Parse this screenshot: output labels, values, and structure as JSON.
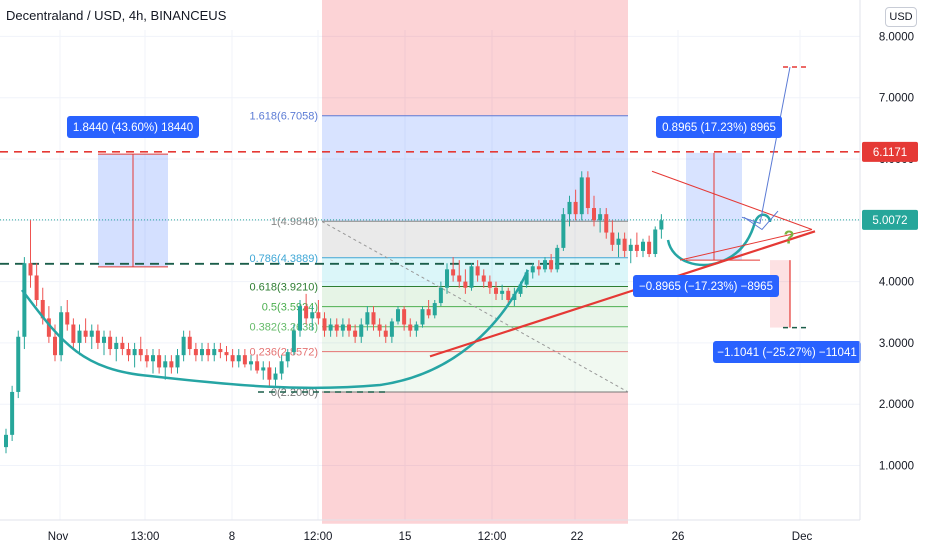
{
  "header": {
    "title": "Decentraland / USD, 4h, BINANCEUS",
    "currency_button": "USD"
  },
  "colors": {
    "up": "#26a69a",
    "down": "#ef5350",
    "red_dash": "#e53935",
    "green_dash": "#1b5e4a",
    "blue_label": "#2962ff",
    "curve": "#26a5a4"
  },
  "chart_data": {
    "type": "candlestick",
    "title": "Decentraland / USD, 4h, BINANCEUS",
    "ylim": [
      0,
      8.5
    ],
    "y_ticks": [
      "8.0000",
      "7.0000",
      "6.0000",
      "5.0000",
      "4.0000",
      "3.0000",
      "2.0000",
      "1.0000"
    ],
    "x_ticks": [
      "Nov",
      "13:00",
      "8",
      "12:00",
      "15",
      "12:00",
      "22",
      "26",
      "Dec"
    ],
    "price_labels": [
      {
        "value": 6.1171,
        "text": "6.1171",
        "color": "#e53935"
      },
      {
        "value": 5.0072,
        "text": "5.0072",
        "color": "#26a69a"
      }
    ],
    "horizontal_lines": [
      {
        "value": 6.1171,
        "style": "dashed",
        "color": "#e53935"
      },
      {
        "value": 4.29,
        "style": "dashed",
        "color": "#1b5e4a"
      }
    ],
    "fibonacci": {
      "levels": [
        {
          "ratio": "1.618",
          "value": 6.7058,
          "label": "1.618(6.7058)"
        },
        {
          "ratio": "1",
          "value": 4.9848,
          "label": "1(4.9848)"
        },
        {
          "ratio": "0.786",
          "value": 4.3889,
          "label": "0.786(4.3889)"
        },
        {
          "ratio": "0.618",
          "value": 3.921,
          "label": "0.618(3.9210)"
        },
        {
          "ratio": "0.5",
          "value": 3.5924,
          "label": "0.5(3.5924)"
        },
        {
          "ratio": "0.382",
          "value": 3.2638,
          "label": "0.382(3.2638)"
        },
        {
          "ratio": "0.236",
          "value": 2.8572,
          "label": "0.236(2.8572)"
        },
        {
          "ratio": "0",
          "value": 2.2,
          "label": "0(2.2000)"
        }
      ]
    },
    "measure_labels": [
      "1.8440 (43.60%) 18440",
      "0.8965 (17.23%) 8965",
      "−0.8965 (−17.23%) −8965",
      "−1.1041 (−25.27%) −11041"
    ],
    "annotation": "?",
    "series": [
      {
        "name": "",
        "ohlc": [
          [
            1.3,
            1.6,
            1.2,
            1.5
          ],
          [
            1.5,
            2.3,
            1.4,
            2.2
          ],
          [
            2.2,
            3.2,
            2.1,
            3.1
          ],
          [
            3.1,
            4.4,
            2.9,
            4.3
          ],
          [
            4.3,
            5.0,
            3.9,
            4.1
          ],
          [
            4.1,
            4.3,
            3.6,
            3.7
          ],
          [
            3.7,
            3.9,
            3.3,
            3.4
          ],
          [
            3.4,
            3.6,
            3.0,
            3.1
          ],
          [
            3.1,
            3.3,
            2.7,
            2.8
          ],
          [
            2.8,
            3.6,
            2.7,
            3.5
          ],
          [
            3.5,
            3.7,
            3.2,
            3.3
          ],
          [
            3.3,
            3.4,
            2.9,
            3.0
          ],
          [
            3.0,
            3.3,
            2.8,
            3.2
          ],
          [
            3.2,
            3.4,
            3.0,
            3.1
          ],
          [
            3.1,
            3.3,
            2.9,
            3.2
          ],
          [
            3.2,
            3.3,
            2.9,
            3.0
          ],
          [
            3.0,
            3.2,
            2.8,
            3.1
          ],
          [
            3.1,
            3.2,
            2.8,
            2.9
          ],
          [
            2.9,
            3.1,
            2.7,
            3.0
          ],
          [
            3.0,
            3.1,
            2.8,
            2.9
          ],
          [
            2.9,
            3.0,
            2.7,
            2.8
          ],
          [
            2.8,
            3.0,
            2.6,
            2.9
          ],
          [
            2.9,
            3.1,
            2.7,
            2.8
          ],
          [
            2.8,
            2.9,
            2.6,
            2.7
          ],
          [
            2.7,
            2.9,
            2.5,
            2.8
          ],
          [
            2.8,
            2.9,
            2.5,
            2.6
          ],
          [
            2.6,
            2.8,
            2.4,
            2.7
          ],
          [
            2.7,
            2.8,
            2.5,
            2.6
          ],
          [
            2.6,
            2.9,
            2.5,
            2.8
          ],
          [
            2.8,
            3.2,
            2.7,
            3.1
          ],
          [
            3.1,
            3.2,
            2.8,
            2.9
          ],
          [
            2.9,
            3.0,
            2.7,
            2.8
          ],
          [
            2.8,
            3.0,
            2.7,
            2.9
          ],
          [
            2.9,
            3.0,
            2.7,
            2.8
          ],
          [
            2.8,
            3.0,
            2.7,
            2.9
          ],
          [
            2.9,
            3.0,
            2.75,
            2.85
          ],
          [
            2.85,
            2.95,
            2.7,
            2.8
          ],
          [
            2.8,
            2.9,
            2.6,
            2.7
          ],
          [
            2.7,
            2.9,
            2.6,
            2.8
          ],
          [
            2.8,
            2.9,
            2.6,
            2.65
          ],
          [
            2.65,
            2.8,
            2.55,
            2.7
          ],
          [
            2.7,
            2.8,
            2.5,
            2.55
          ],
          [
            2.55,
            2.7,
            2.4,
            2.6
          ],
          [
            2.6,
            2.7,
            2.3,
            2.4
          ],
          [
            2.4,
            2.6,
            2.3,
            2.5
          ],
          [
            2.5,
            2.8,
            2.4,
            2.7
          ],
          [
            2.7,
            2.9,
            2.6,
            2.85
          ],
          [
            2.85,
            3.3,
            2.8,
            3.2
          ],
          [
            3.2,
            3.7,
            3.1,
            3.6
          ],
          [
            3.6,
            3.8,
            3.3,
            3.4
          ],
          [
            3.4,
            3.6,
            3.2,
            3.5
          ],
          [
            3.5,
            3.7,
            3.3,
            3.4
          ],
          [
            3.4,
            3.5,
            3.1,
            3.2
          ],
          [
            3.2,
            3.4,
            3.1,
            3.3
          ],
          [
            3.3,
            3.4,
            3.1,
            3.2
          ],
          [
            3.2,
            3.4,
            3.1,
            3.3
          ],
          [
            3.3,
            3.4,
            3.1,
            3.2
          ],
          [
            3.2,
            3.3,
            3.0,
            3.1
          ],
          [
            3.1,
            3.4,
            3.0,
            3.3
          ],
          [
            3.3,
            3.6,
            3.2,
            3.5
          ],
          [
            3.5,
            3.6,
            3.2,
            3.3
          ],
          [
            3.3,
            3.4,
            3.1,
            3.2
          ],
          [
            3.2,
            3.3,
            3.0,
            3.1
          ],
          [
            3.1,
            3.4,
            3.0,
            3.35
          ],
          [
            3.35,
            3.6,
            3.3,
            3.55
          ],
          [
            3.55,
            3.6,
            3.2,
            3.3
          ],
          [
            3.3,
            3.4,
            3.1,
            3.2
          ],
          [
            3.2,
            3.35,
            3.1,
            3.3
          ],
          [
            3.3,
            3.6,
            3.25,
            3.55
          ],
          [
            3.55,
            3.7,
            3.4,
            3.45
          ],
          [
            3.45,
            3.7,
            3.4,
            3.65
          ],
          [
            3.65,
            4.0,
            3.6,
            3.9
          ],
          [
            3.9,
            4.3,
            3.8,
            4.2
          ],
          [
            4.2,
            4.4,
            4.0,
            4.1
          ],
          [
            4.1,
            4.35,
            3.9,
            4.0
          ],
          [
            4.0,
            4.2,
            3.8,
            3.9
          ],
          [
            3.9,
            4.3,
            3.85,
            4.25
          ],
          [
            4.25,
            4.35,
            4.0,
            4.1
          ],
          [
            4.1,
            4.2,
            3.9,
            4.0
          ],
          [
            4.0,
            4.1,
            3.8,
            3.9
          ],
          [
            3.9,
            4.0,
            3.7,
            3.8
          ],
          [
            3.8,
            3.95,
            3.7,
            3.85
          ],
          [
            3.85,
            3.9,
            3.65,
            3.7
          ],
          [
            3.7,
            3.9,
            3.6,
            3.8
          ],
          [
            3.8,
            4.0,
            3.75,
            3.95
          ],
          [
            3.95,
            4.2,
            3.9,
            4.15
          ],
          [
            4.15,
            4.3,
            4.05,
            4.25
          ],
          [
            4.25,
            4.35,
            4.1,
            4.2
          ],
          [
            4.2,
            4.4,
            4.15,
            4.35
          ],
          [
            4.35,
            4.45,
            4.15,
            4.2
          ],
          [
            4.2,
            4.6,
            4.15,
            4.55
          ],
          [
            4.55,
            5.2,
            4.5,
            5.1
          ],
          [
            5.1,
            5.4,
            4.9,
            5.3
          ],
          [
            5.3,
            5.5,
            5.0,
            5.1
          ],
          [
            5.1,
            5.8,
            5.0,
            5.7
          ],
          [
            5.7,
            5.8,
            5.1,
            5.2
          ],
          [
            5.2,
            5.4,
            4.9,
            5.0
          ],
          [
            5.0,
            5.2,
            4.8,
            5.1
          ],
          [
            5.1,
            5.2,
            4.7,
            4.8
          ],
          [
            4.8,
            5.0,
            4.5,
            4.6
          ],
          [
            4.6,
            4.8,
            4.4,
            4.7
          ],
          [
            4.7,
            4.8,
            4.4,
            4.5
          ],
          [
            4.5,
            4.7,
            4.3,
            4.6
          ],
          [
            4.6,
            4.8,
            4.4,
            4.5
          ],
          [
            4.5,
            4.7,
            4.4,
            4.65
          ],
          [
            4.65,
            4.75,
            4.4,
            4.45
          ],
          [
            4.45,
            4.9,
            4.4,
            4.85
          ],
          [
            4.85,
            5.1,
            4.7,
            5.0
          ]
        ]
      }
    ]
  }
}
